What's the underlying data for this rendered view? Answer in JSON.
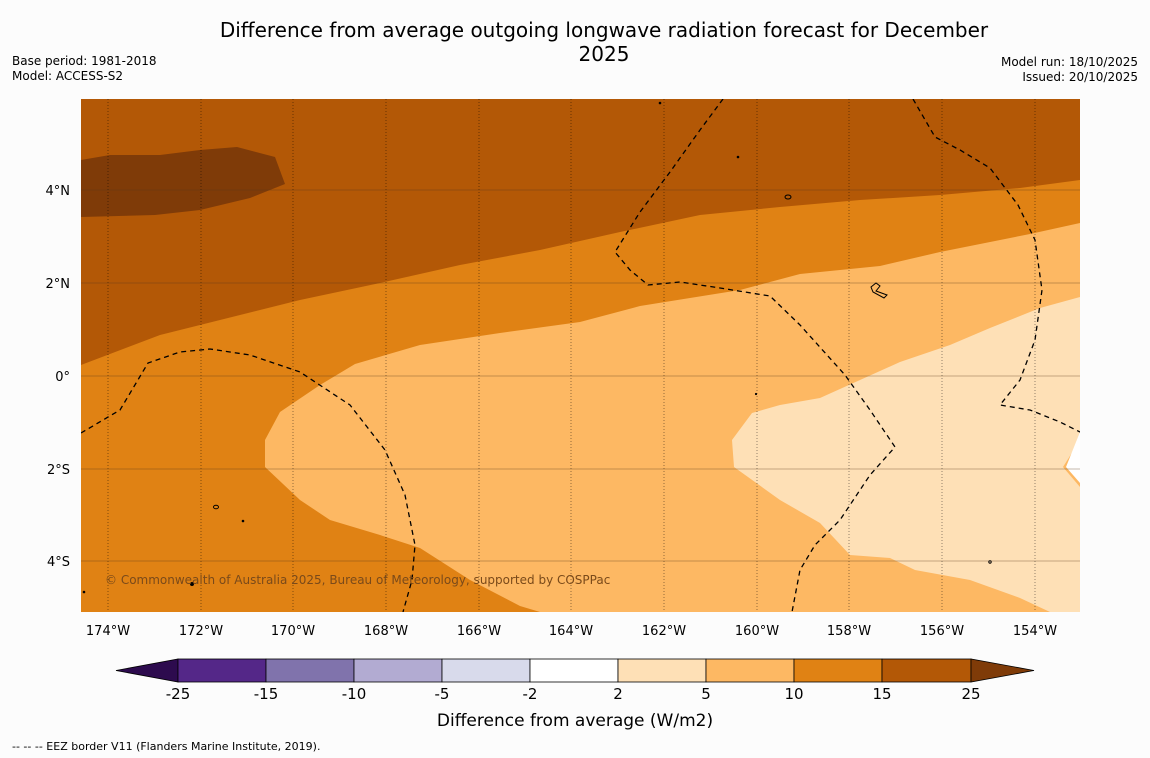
{
  "title": "Difference from average outgoing longwave radiation forecast for December 2025",
  "meta_left": [
    "Base period: 1981-2018",
    "Model: ACCESS-S2"
  ],
  "meta_right": [
    "Model run: 18/10/2025",
    "Issued: 20/10/2025"
  ],
  "map": {
    "lon_ticks": [
      "174°W",
      "172°W",
      "170°W",
      "168°W",
      "166°W",
      "164°W",
      "162°W",
      "160°W",
      "158°W",
      "156°W",
      "154°W"
    ],
    "lat_ticks": [
      "4°N",
      "2°N",
      "0°",
      "2°S",
      "4°S"
    ],
    "lon_range": [
      -174.6,
      -153.0
    ],
    "lat_range": [
      -5.2,
      5.9
    ],
    "copyright": "© Commonwealth of Australia 2025, Bureau of Meteorology, supported by COSPPac"
  },
  "legend": {
    "title": "Difference from average (W/m2)",
    "tick_labels": [
      "-25",
      "-15",
      "-10",
      "-5",
      "-2",
      "2",
      "5",
      "10",
      "15",
      "25"
    ],
    "colors": {
      "lt_neg25": "#2d0b4e",
      "neg25_neg15": "#542788",
      "neg15_neg10": "#8073ac",
      "neg10_neg5": "#b2abd2",
      "neg5_neg2": "#d8daeb",
      "neg2_2": "#ffffff",
      "2_5": "#fee0b6",
      "5_10": "#fdb863",
      "10_15": "#e08214",
      "15_25": "#b35806",
      "gt_25": "#7f3b08"
    }
  },
  "footer": "--  --  -- EEZ border V11 (Flanders Marine Institute, 2019)."
}
